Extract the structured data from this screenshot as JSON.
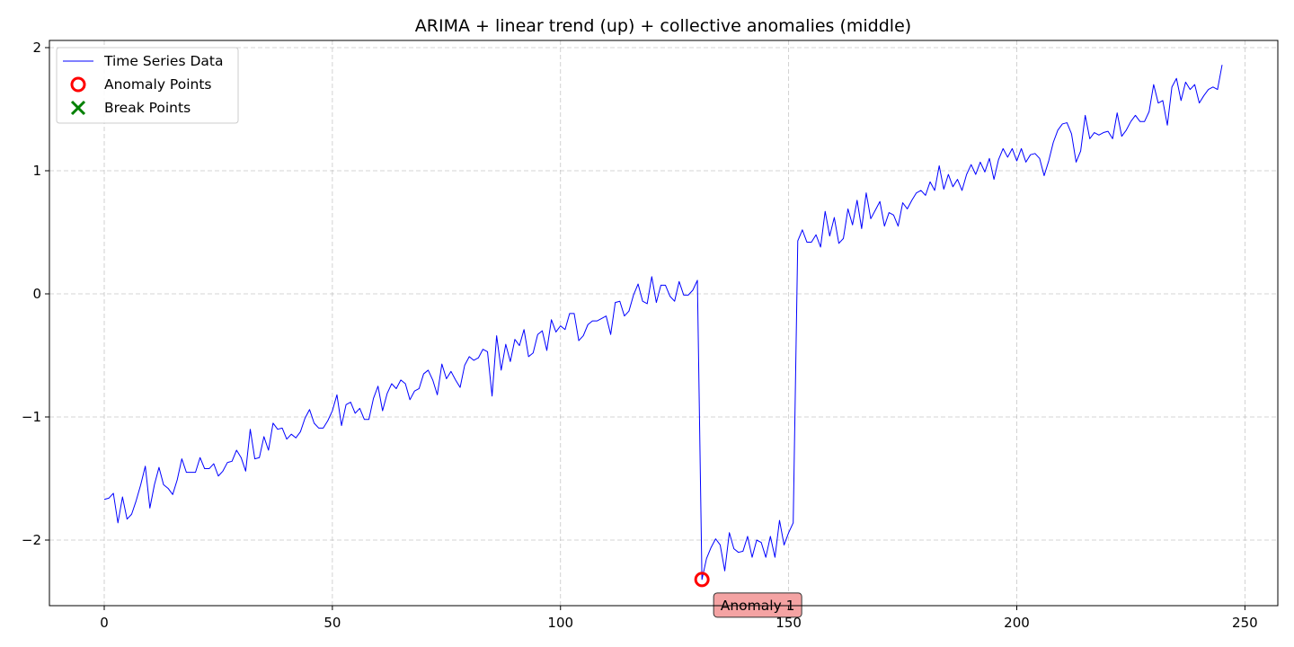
{
  "chart_data": {
    "type": "line",
    "title": "ARIMA + linear trend (up) + collective anomalies (middle)",
    "xlabel": "",
    "ylabel": "",
    "xlim": [
      -12,
      258
    ],
    "ylim": [
      -2.53,
      2.05
    ],
    "xticks": [
      0,
      50,
      100,
      150,
      200,
      250
    ],
    "yticks": [
      -2,
      -1,
      0,
      1,
      2
    ],
    "xtick_labels": [
      "0",
      "50",
      "100",
      "150",
      "200",
      "250"
    ],
    "ytick_labels": [
      "−2",
      "−1",
      "0",
      "1",
      "2"
    ],
    "grid": true,
    "legend_placement": "top-left",
    "legend": [
      {
        "label": "Time Series Data",
        "marker": "line",
        "color": "#0000ff"
      },
      {
        "label": "Anomaly Points",
        "marker": "circle",
        "color": "#ff0000"
      },
      {
        "label": "Break Points",
        "marker": "x",
        "color": "#008000"
      }
    ],
    "series": [
      {
        "name": "Time Series Data",
        "color": "#0000ff",
        "x_start": 0,
        "x_step": 1,
        "values": [
          -1.67,
          -1.66,
          -1.62,
          -1.86,
          -1.65,
          -1.83,
          -1.79,
          -1.68,
          -1.55,
          -1.4,
          -1.74,
          -1.55,
          -1.41,
          -1.55,
          -1.58,
          -1.63,
          -1.51,
          -1.34,
          -1.45,
          -1.45,
          -1.45,
          -1.33,
          -1.42,
          -1.42,
          -1.38,
          -1.48,
          -1.44,
          -1.37,
          -1.36,
          -1.27,
          -1.33,
          -1.44,
          -1.1,
          -1.34,
          -1.33,
          -1.16,
          -1.27,
          -1.05,
          -1.1,
          -1.09,
          -1.18,
          -1.14,
          -1.17,
          -1.12,
          -1.01,
          -0.94,
          -1.05,
          -1.09,
          -1.09,
          -1.03,
          -0.95,
          -0.82,
          -1.07,
          -0.9,
          -0.88,
          -0.97,
          -0.93,
          -1.02,
          -1.02,
          -0.85,
          -0.75,
          -0.95,
          -0.81,
          -0.73,
          -0.77,
          -0.7,
          -0.73,
          -0.86,
          -0.79,
          -0.77,
          -0.65,
          -0.62,
          -0.7,
          -0.82,
          -0.57,
          -0.69,
          -0.63,
          -0.7,
          -0.76,
          -0.58,
          -0.51,
          -0.54,
          -0.52,
          -0.45,
          -0.47,
          -0.83,
          -0.34,
          -0.62,
          -0.41,
          -0.55,
          -0.37,
          -0.42,
          -0.29,
          -0.51,
          -0.48,
          -0.33,
          -0.3,
          -0.46,
          -0.21,
          -0.31,
          -0.26,
          -0.29,
          -0.16,
          -0.16,
          -0.38,
          -0.34,
          -0.25,
          -0.22,
          -0.22,
          -0.2,
          -0.18,
          -0.33,
          -0.07,
          -0.06,
          -0.18,
          -0.14,
          -0.01,
          0.08,
          -0.06,
          -0.08,
          0.14,
          -0.07,
          0.07,
          0.07,
          -0.02,
          -0.06,
          0.1,
          -0.01,
          -0.01,
          0.03,
          0.11,
          -2.32,
          -2.15,
          -2.06,
          -1.99,
          -2.04,
          -2.25,
          -1.94,
          -2.07,
          -2.1,
          -2.09,
          -1.97,
          -2.14,
          -2.0,
          -2.02,
          -2.14,
          -1.97,
          -2.14,
          -1.84,
          -2.04,
          -1.94,
          -1.86,
          0.43,
          0.52,
          0.42,
          0.42,
          0.48,
          0.38,
          0.67,
          0.47,
          0.62,
          0.41,
          0.45,
          0.69,
          0.56,
          0.76,
          0.53,
          0.82,
          0.61,
          0.68,
          0.75,
          0.55,
          0.66,
          0.64,
          0.55,
          0.74,
          0.69,
          0.76,
          0.82,
          0.84,
          0.8,
          0.91,
          0.84,
          1.04,
          0.85,
          0.97,
          0.87,
          0.93,
          0.84,
          0.97,
          1.05,
          0.97,
          1.07,
          0.99,
          1.1,
          0.93,
          1.09,
          1.18,
          1.11,
          1.18,
          1.08,
          1.18,
          1.07,
          1.13,
          1.14,
          1.1,
          0.96,
          1.08,
          1.23,
          1.33,
          1.38,
          1.39,
          1.3,
          1.07,
          1.16,
          1.45,
          1.26,
          1.31,
          1.29,
          1.31,
          1.32,
          1.26,
          1.47,
          1.28,
          1.33,
          1.4,
          1.45,
          1.4,
          1.4,
          1.48,
          1.7,
          1.55,
          1.57,
          1.37,
          1.68,
          1.75,
          1.57,
          1.72,
          1.66,
          1.7,
          1.55,
          1.61,
          1.66,
          1.68,
          1.66,
          1.86
        ]
      }
    ],
    "anomaly_points": [
      {
        "x": 131,
        "y": -2.32
      }
    ],
    "break_points": [],
    "annotations": [
      {
        "text": "Anomaly 1",
        "x": 131,
        "y": -2.32
      }
    ],
    "annotation_color": "#f4a3a3"
  }
}
